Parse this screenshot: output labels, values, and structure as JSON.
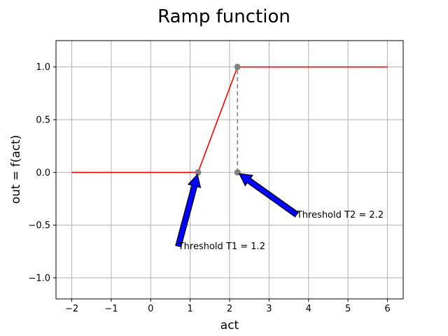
{
  "chart_data": {
    "type": "line",
    "title": "Ramp function",
    "xlabel": "act",
    "ylabel": "out = f(act)",
    "xlim": [
      -2.4,
      6.4
    ],
    "ylim": [
      -1.2,
      1.25
    ],
    "grid": true,
    "x_ticks": [
      -2,
      -1,
      0,
      1,
      2,
      3,
      4,
      5,
      6
    ],
    "x_tick_labels": [
      "−2",
      "−1",
      "0",
      "1",
      "2",
      "3",
      "4",
      "5",
      "6"
    ],
    "y_ticks": [
      -1.0,
      -0.5,
      0.0,
      0.5,
      1.0
    ],
    "y_tick_labels": [
      "−1.0",
      "−0.5",
      "0.0",
      "0.5",
      "1.0"
    ],
    "series": [
      {
        "x": [
          -2,
          1.2,
          2.2,
          6
        ],
        "y": [
          0,
          0,
          1,
          1
        ],
        "color": "#ff0000"
      }
    ],
    "dashed_line": {
      "x": [
        2.2,
        2.2
      ],
      "y": [
        0,
        1
      ],
      "color": "#808080"
    },
    "markers": [
      {
        "x": 1.2,
        "y": 0,
        "color": "#808080"
      },
      {
        "x": 2.2,
        "y": 0,
        "color": "#808080"
      },
      {
        "x": 2.2,
        "y": 1,
        "color": "#808080"
      }
    ],
    "annotations": [
      {
        "text": "Threshold T1 = 1.2",
        "x": 1.2,
        "y": 0,
        "text_x": 0.7,
        "text_y": -0.7,
        "arrow_color": "#0000ff"
      },
      {
        "text": "Threshold T2 = 2.2",
        "x": 2.2,
        "y": 0,
        "text_x": 3.7,
        "text_y": -0.4,
        "arrow_color": "#0000ff"
      }
    ]
  }
}
